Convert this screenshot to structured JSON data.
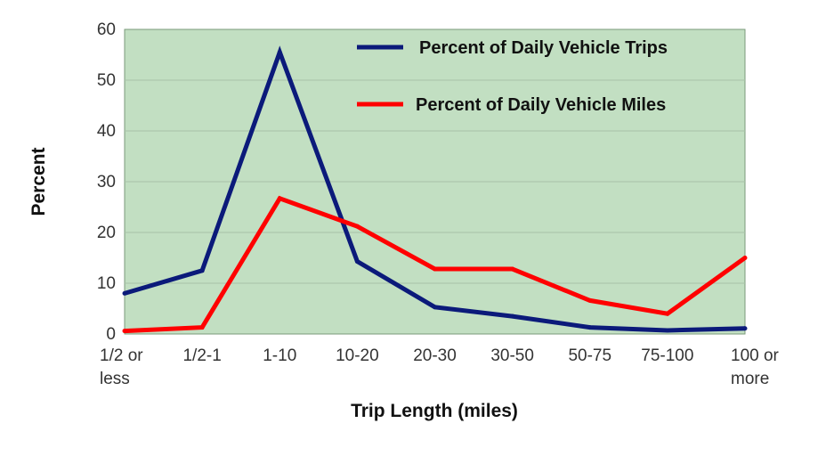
{
  "chart_data": {
    "type": "line",
    "xlabel": "Trip Length (miles)",
    "ylabel": "Percent",
    "ylim": [
      0,
      60
    ],
    "yticks": [
      "0",
      "10",
      "20",
      "30",
      "40",
      "50",
      "60"
    ],
    "categories": [
      [
        "1/2 or",
        "less"
      ],
      [
        "1/2-1"
      ],
      [
        "1-10"
      ],
      [
        "10-20"
      ],
      [
        "20-30"
      ],
      [
        "30-50"
      ],
      [
        "50-75"
      ],
      [
        "75-100"
      ],
      [
        "100 or",
        "more"
      ]
    ],
    "series": [
      {
        "name": "Percent of Daily Vehicle Trips",
        "color": "#0b1a7a",
        "values": [
          8,
          12.5,
          55.5,
          14.3,
          5.3,
          3.5,
          1.3,
          0.7,
          1.1
        ]
      },
      {
        "name": "Percent of Daily Vehicle Miles",
        "color": "#ff0000",
        "values": [
          0.6,
          1.3,
          26.7,
          21.2,
          12.8,
          12.8,
          6.6,
          4,
          15
        ]
      }
    ],
    "grid": true,
    "plot_background": "#c2dfc2",
    "legend_position": "top-right"
  }
}
